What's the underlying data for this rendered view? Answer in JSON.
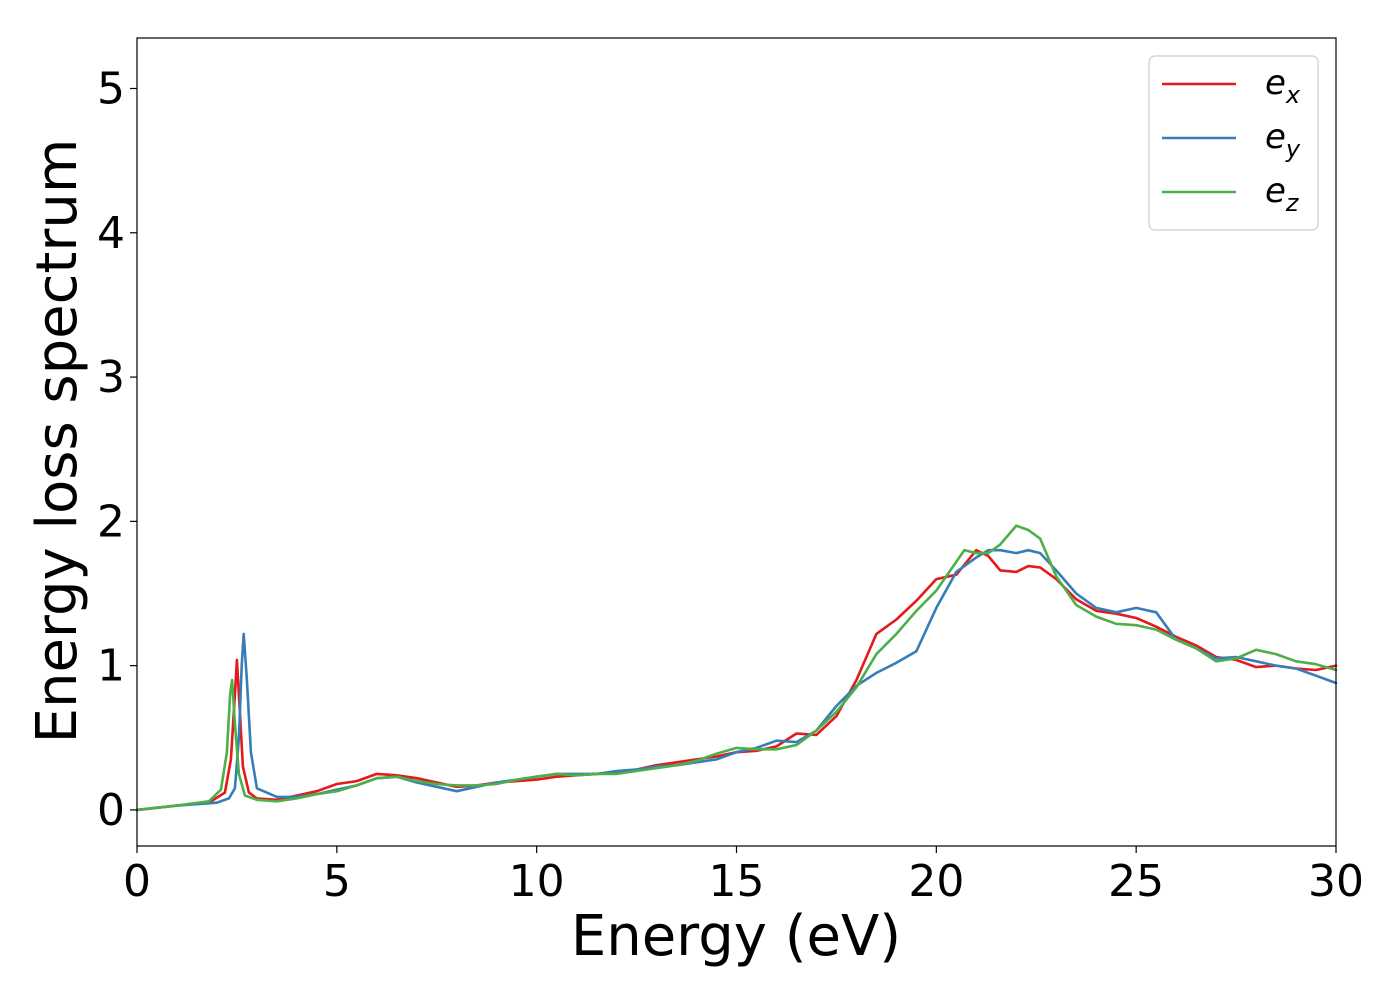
{
  "chart_data": {
    "type": "line",
    "xlabel": "Energy (eV)",
    "ylabel": "Energy loss spectrum",
    "xlim": [
      0,
      30
    ],
    "ylim": [
      -0.25,
      5.35
    ],
    "x_ticks": [
      "0",
      "5",
      "10",
      "15",
      "20",
      "25",
      "30"
    ],
    "y_ticks": [
      "0",
      "1",
      "2",
      "3",
      "4",
      "5"
    ],
    "grid": false,
    "legend_position": "top-right",
    "series": [
      {
        "name": "e_x",
        "legend_base": "e",
        "legend_sub": "x",
        "color": "#e41a1c",
        "points": [
          [
            0,
            0
          ],
          [
            1,
            0.03
          ],
          [
            1.8,
            0.05
          ],
          [
            2.2,
            0.12
          ],
          [
            2.35,
            0.35
          ],
          [
            2.45,
            0.8
          ],
          [
            2.5,
            1.04
          ],
          [
            2.56,
            0.75
          ],
          [
            2.65,
            0.3
          ],
          [
            2.8,
            0.12
          ],
          [
            3.0,
            0.08
          ],
          [
            3.5,
            0.07
          ],
          [
            4,
            0.1
          ],
          [
            4.5,
            0.13
          ],
          [
            5,
            0.18
          ],
          [
            5.5,
            0.2
          ],
          [
            6,
            0.25
          ],
          [
            6.5,
            0.24
          ],
          [
            7,
            0.22
          ],
          [
            7.5,
            0.19
          ],
          [
            8,
            0.16
          ],
          [
            8.5,
            0.17
          ],
          [
            9,
            0.19
          ],
          [
            9.5,
            0.2
          ],
          [
            10,
            0.21
          ],
          [
            10.5,
            0.23
          ],
          [
            11,
            0.24
          ],
          [
            11.5,
            0.25
          ],
          [
            12,
            0.26
          ],
          [
            12.5,
            0.28
          ],
          [
            13,
            0.31
          ],
          [
            13.5,
            0.33
          ],
          [
            14,
            0.35
          ],
          [
            14.5,
            0.37
          ],
          [
            15,
            0.4
          ],
          [
            15.5,
            0.41
          ],
          [
            16,
            0.44
          ],
          [
            16.5,
            0.53
          ],
          [
            17,
            0.52
          ],
          [
            17.5,
            0.65
          ],
          [
            18,
            0.9
          ],
          [
            18.5,
            1.22
          ],
          [
            19,
            1.32
          ],
          [
            19.5,
            1.45
          ],
          [
            20,
            1.6
          ],
          [
            20.5,
            1.63
          ],
          [
            21,
            1.8
          ],
          [
            21.3,
            1.76
          ],
          [
            21.6,
            1.66
          ],
          [
            22,
            1.65
          ],
          [
            22.3,
            1.69
          ],
          [
            22.6,
            1.68
          ],
          [
            23,
            1.6
          ],
          [
            23.5,
            1.46
          ],
          [
            24,
            1.38
          ],
          [
            24.5,
            1.36
          ],
          [
            25,
            1.33
          ],
          [
            25.5,
            1.27
          ],
          [
            26,
            1.2
          ],
          [
            26.5,
            1.14
          ],
          [
            27,
            1.06
          ],
          [
            27.5,
            1.04
          ],
          [
            28,
            0.99
          ],
          [
            28.5,
            1.0
          ],
          [
            29,
            0.98
          ],
          [
            29.5,
            0.97
          ],
          [
            30,
            1.0
          ]
        ]
      },
      {
        "name": "e_y",
        "legend_base": "e",
        "legend_sub": "y",
        "color": "#377eb8",
        "points": [
          [
            0,
            0
          ],
          [
            1,
            0.03
          ],
          [
            2,
            0.05
          ],
          [
            2.3,
            0.08
          ],
          [
            2.45,
            0.15
          ],
          [
            2.55,
            0.5
          ],
          [
            2.62,
            1.0
          ],
          [
            2.67,
            1.22
          ],
          [
            2.75,
            0.9
          ],
          [
            2.85,
            0.4
          ],
          [
            3.0,
            0.15
          ],
          [
            3.5,
            0.09
          ],
          [
            4,
            0.09
          ],
          [
            4.5,
            0.11
          ],
          [
            5,
            0.14
          ],
          [
            5.5,
            0.17
          ],
          [
            6,
            0.22
          ],
          [
            6.5,
            0.23
          ],
          [
            7,
            0.19
          ],
          [
            7.5,
            0.16
          ],
          [
            8,
            0.13
          ],
          [
            8.5,
            0.16
          ],
          [
            9,
            0.19
          ],
          [
            9.5,
            0.21
          ],
          [
            10,
            0.23
          ],
          [
            10.5,
            0.25
          ],
          [
            11,
            0.25
          ],
          [
            11.5,
            0.25
          ],
          [
            12,
            0.27
          ],
          [
            12.5,
            0.28
          ],
          [
            13,
            0.3
          ],
          [
            13.5,
            0.31
          ],
          [
            14,
            0.33
          ],
          [
            14.5,
            0.35
          ],
          [
            15,
            0.4
          ],
          [
            15.5,
            0.43
          ],
          [
            16,
            0.48
          ],
          [
            16.5,
            0.47
          ],
          [
            17,
            0.55
          ],
          [
            17.5,
            0.72
          ],
          [
            18,
            0.86
          ],
          [
            18.5,
            0.95
          ],
          [
            19,
            1.02
          ],
          [
            19.5,
            1.1
          ],
          [
            20,
            1.4
          ],
          [
            20.5,
            1.65
          ],
          [
            21,
            1.75
          ],
          [
            21.3,
            1.8
          ],
          [
            21.6,
            1.8
          ],
          [
            22,
            1.78
          ],
          [
            22.3,
            1.8
          ],
          [
            22.6,
            1.78
          ],
          [
            23,
            1.66
          ],
          [
            23.5,
            1.5
          ],
          [
            24,
            1.4
          ],
          [
            24.5,
            1.37
          ],
          [
            25,
            1.4
          ],
          [
            25.5,
            1.37
          ],
          [
            26,
            1.18
          ],
          [
            26.5,
            1.12
          ],
          [
            27,
            1.05
          ],
          [
            27.5,
            1.06
          ],
          [
            28,
            1.03
          ],
          [
            28.5,
            1.0
          ],
          [
            29,
            0.98
          ],
          [
            29.5,
            0.93
          ],
          [
            30,
            0.88
          ]
        ]
      },
      {
        "name": "e_z",
        "legend_base": "e",
        "legend_sub": "z",
        "color": "#4daf4a",
        "points": [
          [
            0,
            0
          ],
          [
            1,
            0.03
          ],
          [
            1.8,
            0.06
          ],
          [
            2.1,
            0.14
          ],
          [
            2.25,
            0.4
          ],
          [
            2.33,
            0.8
          ],
          [
            2.38,
            0.9
          ],
          [
            2.45,
            0.6
          ],
          [
            2.55,
            0.25
          ],
          [
            2.7,
            0.1
          ],
          [
            3.0,
            0.07
          ],
          [
            3.5,
            0.06
          ],
          [
            4,
            0.08
          ],
          [
            4.5,
            0.11
          ],
          [
            5,
            0.13
          ],
          [
            5.5,
            0.17
          ],
          [
            6,
            0.22
          ],
          [
            6.5,
            0.23
          ],
          [
            7,
            0.2
          ],
          [
            7.5,
            0.18
          ],
          [
            8,
            0.17
          ],
          [
            8.5,
            0.17
          ],
          [
            9,
            0.18
          ],
          [
            9.5,
            0.21
          ],
          [
            10,
            0.23
          ],
          [
            10.5,
            0.25
          ],
          [
            11,
            0.24
          ],
          [
            11.5,
            0.25
          ],
          [
            12,
            0.25
          ],
          [
            12.5,
            0.27
          ],
          [
            13,
            0.29
          ],
          [
            13.5,
            0.31
          ],
          [
            14,
            0.34
          ],
          [
            14.5,
            0.39
          ],
          [
            15,
            0.43
          ],
          [
            15.5,
            0.42
          ],
          [
            16,
            0.42
          ],
          [
            16.5,
            0.45
          ],
          [
            17,
            0.55
          ],
          [
            17.5,
            0.68
          ],
          [
            18,
            0.85
          ],
          [
            18.5,
            1.08
          ],
          [
            19,
            1.22
          ],
          [
            19.5,
            1.38
          ],
          [
            20,
            1.52
          ],
          [
            20.5,
            1.72
          ],
          [
            20.7,
            1.8
          ],
          [
            21,
            1.78
          ],
          [
            21.3,
            1.78
          ],
          [
            21.6,
            1.84
          ],
          [
            22,
            1.97
          ],
          [
            22.3,
            1.94
          ],
          [
            22.6,
            1.88
          ],
          [
            23,
            1.62
          ],
          [
            23.5,
            1.42
          ],
          [
            24,
            1.34
          ],
          [
            24.5,
            1.29
          ],
          [
            25,
            1.28
          ],
          [
            25.5,
            1.25
          ],
          [
            26,
            1.18
          ],
          [
            26.5,
            1.12
          ],
          [
            27,
            1.03
          ],
          [
            27.5,
            1.05
          ],
          [
            28,
            1.11
          ],
          [
            28.5,
            1.08
          ],
          [
            29,
            1.03
          ],
          [
            29.5,
            1.01
          ],
          [
            30,
            0.97
          ]
        ]
      }
    ]
  }
}
